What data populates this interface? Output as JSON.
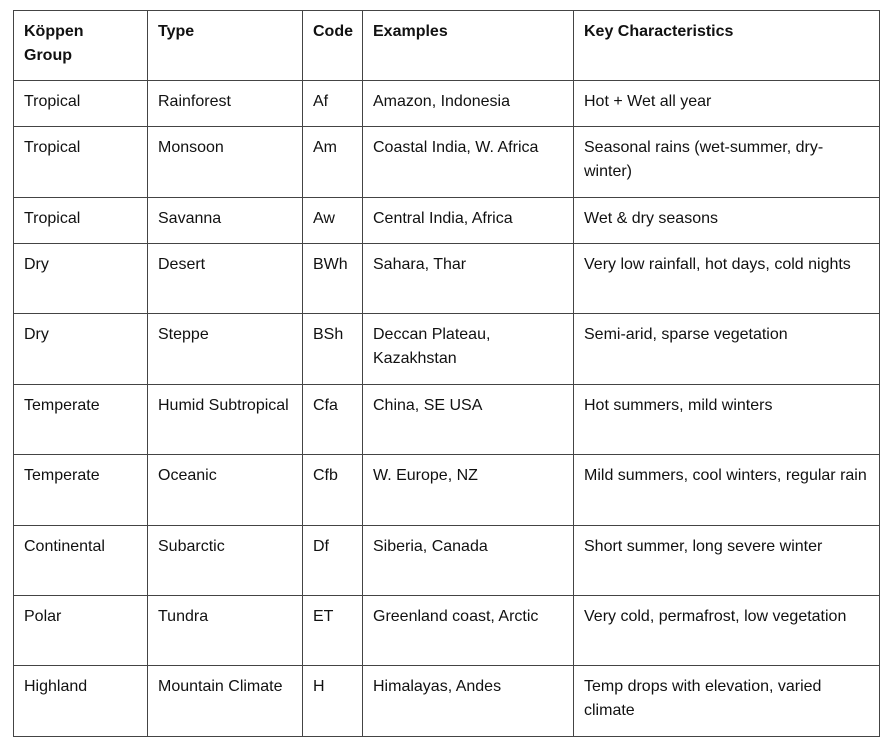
{
  "table": {
    "header": [
      "Köppen Group",
      "Type",
      "Code",
      "Examples",
      "Key Characteristics"
    ],
    "rows": [
      [
        "Tropical",
        "Rainforest",
        "Af",
        "Amazon, Indonesia",
        "Hot + Wet all year"
      ],
      [
        "Tropical",
        "Monsoon",
        "Am",
        "Coastal India, W. Africa",
        "Seasonal rains (wet-summer, dry-winter)"
      ],
      [
        "Tropical",
        "Savanna",
        "Aw",
        "Central India, Africa",
        "Wet & dry seasons"
      ],
      [
        "Dry",
        "Desert",
        "BWh",
        "Sahara, Thar",
        "Very low rainfall, hot days, cold nights"
      ],
      [
        "Dry",
        "Steppe",
        "BSh",
        "Deccan Plateau, Kazakhstan",
        "Semi-arid, sparse vegetation"
      ],
      [
        "Temperate",
        "Humid Subtropical",
        "Cfa",
        "China, SE USA",
        "Hot summers, mild winters"
      ],
      [
        "Temperate",
        "Oceanic",
        "Cfb",
        "W. Europe, NZ",
        "Mild summers, cool winters, regular rain"
      ],
      [
        "Continental",
        "Subarctic",
        "Df",
        "Siberia, Canada",
        "Short summer, long severe winter"
      ],
      [
        "Polar",
        "Tundra",
        "ET",
        "Greenland coast, Arctic",
        "Very cold, permafrost, low vegetation"
      ],
      [
        "Highland",
        "Mountain Climate",
        "H",
        "Himalayas, Andes",
        "Temp drops with elevation, varied climate"
      ]
    ]
  }
}
